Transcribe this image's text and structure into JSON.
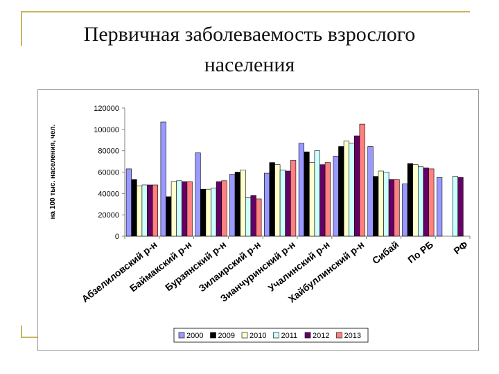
{
  "slide": {
    "title_line1": "Первичная  заболеваемость взрослого",
    "title_line2": "населения"
  },
  "chart_data": {
    "type": "bar",
    "ylabel": "на 100 тыс. населения, чел.",
    "ylim": [
      0,
      120000
    ],
    "yticks": [
      0,
      20000,
      40000,
      60000,
      80000,
      100000,
      120000
    ],
    "grid": false,
    "legend_position": "bottom",
    "categories": [
      "Абзелиловский р-н",
      "Баймакский р-н",
      "Бурзянский р-н",
      "Зилаирский р-н",
      "Зианчуринский р-н",
      "Учалинский  р-н",
      "Хайбуллинский р-н",
      "Сибай",
      "По РБ",
      "РФ"
    ],
    "series": [
      {
        "name": "2000",
        "color": "#9999ff",
        "values": [
          63000,
          107000,
          78000,
          58000,
          59000,
          87000,
          75000,
          84000,
          49000,
          55000
        ]
      },
      {
        "name": "2009",
        "color": "#000000",
        "values": [
          53000,
          37000,
          44000,
          60000,
          69000,
          79000,
          84000,
          56000,
          68000,
          null
        ]
      },
      {
        "name": "2010",
        "color": "#ffffcc",
        "values": [
          47000,
          51000,
          44000,
          62000,
          67000,
          69000,
          89000,
          61000,
          67000,
          null
        ]
      },
      {
        "name": "2011",
        "color": "#ccffff",
        "values": [
          48000,
          52000,
          45000,
          36000,
          62000,
          80000,
          87000,
          60000,
          65000,
          56000
        ]
      },
      {
        "name": "2012",
        "color": "#660066",
        "values": [
          48000,
          51000,
          51000,
          38000,
          61000,
          67000,
          94000,
          53000,
          64000,
          55000
        ]
      },
      {
        "name": "2013",
        "color": "#ff8080",
        "values": [
          48000,
          51000,
          52000,
          35000,
          71000,
          69000,
          105000,
          53000,
          63000,
          null
        ]
      }
    ]
  }
}
